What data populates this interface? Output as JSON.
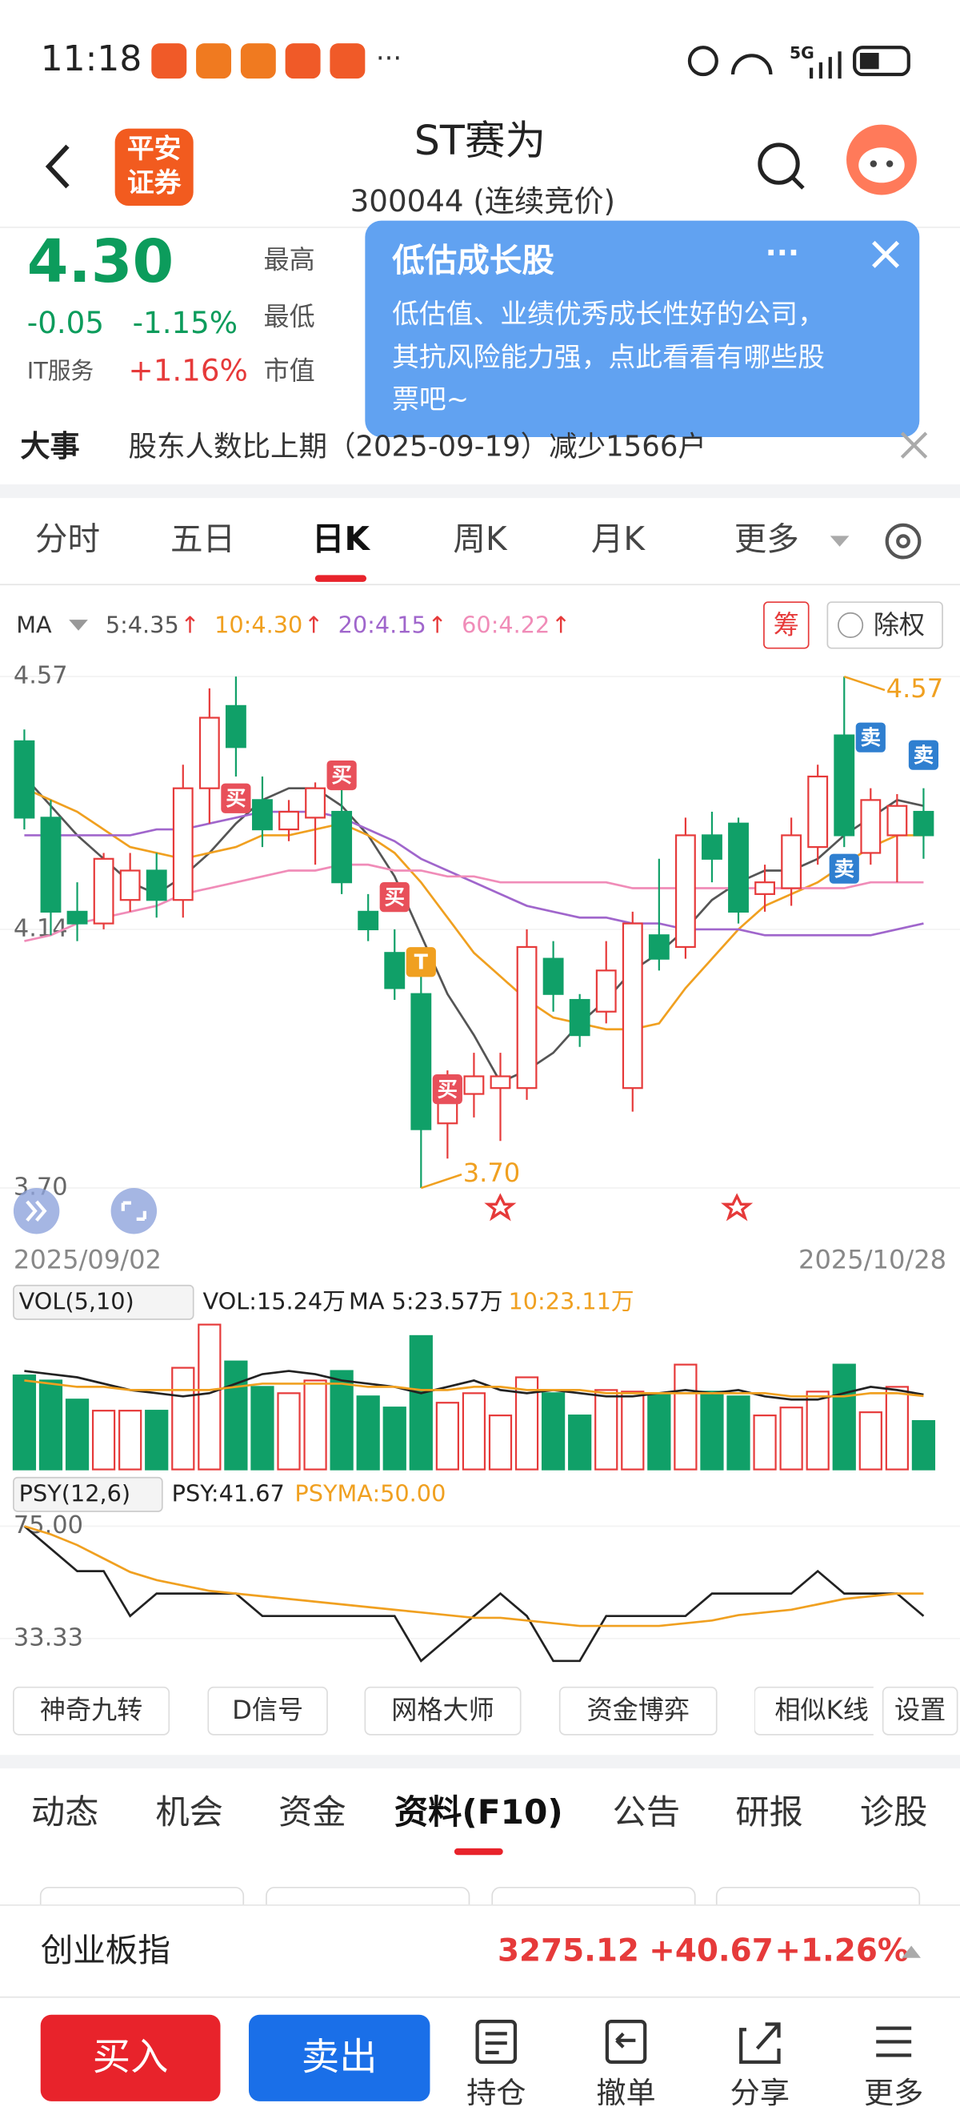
{
  "status_bar": {
    "time": "11:18",
    "network": "5G"
  },
  "header": {
    "logo": [
      "平安",
      "证券"
    ],
    "title": "ST赛为",
    "subtitle": "300044 (连续竞价)"
  },
  "quote": {
    "price": "4.30",
    "change": "-0.05",
    "change_pct": "-1.15%",
    "sector": "IT服务",
    "sector_pct": "+1.16%",
    "labels": [
      "最高",
      "最低",
      "市值"
    ]
  },
  "popup": {
    "title": "低估成长股",
    "lines": [
      "低估值、业绩优秀成长性好的公司，",
      "其抗风险能力强，点此看看有哪些股",
      "票吧~"
    ]
  },
  "news": {
    "label": "大事",
    "text": "股东人数比上期（2025-09-19）减少1566户"
  },
  "tabs": {
    "items": [
      "分时",
      "五日",
      "日K",
      "周K",
      "月K",
      "更多"
    ],
    "active": 2
  },
  "ma_legend": {
    "label": "MA",
    "arrow": "↑",
    "items": [
      {
        "text": "5:4.35",
        "color": "#555555"
      },
      {
        "text": "10:4.30",
        "color": "#f0a020"
      },
      {
        "text": "20:4.15",
        "color": "#a066cc"
      },
      {
        "text": "60:4.22",
        "color": "#f08cb8"
      }
    ]
  },
  "chart_buttons": [
    "筹",
    "除权"
  ],
  "dates": {
    "start": "2025/09/02",
    "end": "2025/10/28"
  },
  "chart_data": [
    {
      "type": "candlestick",
      "ylim": [
        3.7,
        4.57
      ],
      "yticks": [
        4.57,
        4.14,
        {
          "value": 3.7,
          "label": "3.70"
        }
      ],
      "up_color": "#e63a3a",
      "down_color": "#10a068",
      "open": [
        4.46,
        4.33,
        4.17,
        4.15,
        4.19,
        4.24,
        4.19,
        4.38,
        4.52,
        4.36,
        4.31,
        4.33,
        4.34,
        4.17,
        4.1,
        4.03,
        3.81,
        3.86,
        3.87,
        3.87,
        4.09,
        4.02,
        4.0,
        3.87,
        4.13,
        4.11,
        4.3,
        4.32,
        4.2,
        4.21,
        4.28,
        4.47,
        4.27,
        4.3,
        4.34
      ],
      "high": [
        4.48,
        4.36,
        4.22,
        4.27,
        4.27,
        4.27,
        4.42,
        4.55,
        4.57,
        4.4,
        4.36,
        4.39,
        4.38,
        4.2,
        4.14,
        4.06,
        3.9,
        3.93,
        3.93,
        4.14,
        4.12,
        4.03,
        4.12,
        4.17,
        4.26,
        4.33,
        4.34,
        4.33,
        4.25,
        4.33,
        4.42,
        4.57,
        4.38,
        4.37,
        4.38
      ],
      "low": [
        4.31,
        4.13,
        4.12,
        4.14,
        4.17,
        4.16,
        4.16,
        4.32,
        4.4,
        4.28,
        4.29,
        4.25,
        4.2,
        4.12,
        4.02,
        3.7,
        3.75,
        3.82,
        3.78,
        3.85,
        4.0,
        3.94,
        3.98,
        3.83,
        4.07,
        4.09,
        4.22,
        4.15,
        4.17,
        4.18,
        4.25,
        4.28,
        4.25,
        4.22,
        4.26
      ],
      "close": [
        4.33,
        4.17,
        4.15,
        4.26,
        4.24,
        4.19,
        4.38,
        4.5,
        4.45,
        4.31,
        4.34,
        4.38,
        4.22,
        4.14,
        4.04,
        3.8,
        3.87,
        3.89,
        3.89,
        4.11,
        4.03,
        3.96,
        4.07,
        4.15,
        4.09,
        4.3,
        4.26,
        4.17,
        4.22,
        4.3,
        4.4,
        4.3,
        4.36,
        4.35,
        4.3
      ],
      "series": [
        {
          "name": "5",
          "color": "#555555",
          "values": [
            4.4,
            4.35,
            4.3,
            4.26,
            4.22,
            4.2,
            4.23,
            4.27,
            4.32,
            4.36,
            4.38,
            4.38,
            4.35,
            4.3,
            4.23,
            4.13,
            4.03,
            3.96,
            3.88,
            3.9,
            3.93,
            3.98,
            4.02,
            4.07,
            4.1,
            4.14,
            4.19,
            4.22,
            4.24,
            4.24,
            4.26,
            4.3,
            4.33,
            4.36,
            4.35
          ]
        },
        {
          "name": "10",
          "color": "#f0a020",
          "values": [
            4.38,
            4.36,
            4.34,
            4.31,
            4.28,
            4.27,
            4.26,
            4.27,
            4.28,
            4.3,
            4.3,
            4.31,
            4.32,
            4.3,
            4.27,
            4.22,
            4.16,
            4.1,
            4.06,
            4.02,
            3.99,
            3.98,
            3.97,
            3.97,
            3.98,
            4.04,
            4.09,
            4.14,
            4.18,
            4.2,
            4.22,
            4.25,
            4.28,
            4.3,
            4.3
          ]
        },
        {
          "name": "20",
          "color": "#a066cc",
          "values": [
            4.3,
            4.3,
            4.3,
            4.3,
            4.3,
            4.31,
            4.31,
            4.32,
            4.33,
            4.34,
            4.34,
            4.34,
            4.33,
            4.31,
            4.29,
            4.26,
            4.24,
            4.22,
            4.2,
            4.18,
            4.17,
            4.16,
            4.16,
            4.15,
            4.15,
            4.14,
            4.14,
            4.14,
            4.13,
            4.13,
            4.13,
            4.13,
            4.13,
            4.14,
            4.15
          ]
        },
        {
          "name": "60",
          "color": "#f08cb8",
          "values": [
            4.12,
            4.13,
            4.15,
            4.16,
            4.17,
            4.18,
            4.2,
            4.21,
            4.22,
            4.23,
            4.24,
            4.24,
            4.25,
            4.25,
            4.24,
            4.24,
            4.23,
            4.23,
            4.22,
            4.22,
            4.22,
            4.22,
            4.22,
            4.21,
            4.21,
            4.21,
            4.21,
            4.21,
            4.21,
            4.21,
            4.21,
            4.21,
            4.22,
            4.22,
            4.22
          ]
        }
      ],
      "annotations": [
        {
          "label": "买",
          "index": 8
        },
        {
          "label": "买",
          "index": 12
        },
        {
          "label": "买",
          "index": 14
        },
        {
          "label": "买",
          "index": 16
        },
        {
          "label": "卖",
          "index": 32
        },
        {
          "label": "卖",
          "index": 34
        },
        {
          "label": "卖",
          "index": 31
        },
        {
          "label": "T",
          "index": 15
        },
        {
          "label": "4.57",
          "index": 31
        },
        {
          "label": "3.70",
          "index": 15
        }
      ]
    },
    {
      "type": "bar",
      "legend": [
        "VOL(5,10)",
        "VOL:15.24万",
        "MA 5:23.57万",
        "10:23.11万"
      ],
      "ylim": [
        0,
        46
      ],
      "values": [
        29.6,
        28,
        22,
        18.5,
        18.5,
        18.5,
        32,
        45.6,
        34,
        26,
        24,
        28,
        31,
        23,
        19.5,
        42,
        21,
        24,
        17,
        29,
        24,
        17,
        25,
        24.5,
        24,
        33,
        24.5,
        23,
        17,
        19.5,
        24.5,
        33,
        18,
        26,
        15.24
      ],
      "series": [
        {
          "name": "MA 5",
          "color": "#222222",
          "values": [
            31,
            30,
            29,
            27,
            25,
            24,
            23,
            24,
            27,
            30,
            31,
            30,
            28,
            27,
            26,
            24,
            26,
            28,
            25,
            24,
            25,
            24,
            23,
            23,
            24,
            25,
            24,
            25,
            23,
            22,
            22,
            24,
            26,
            25,
            23.57
          ]
        },
        {
          "name": "10",
          "color": "#f0a020",
          "values": [
            28,
            27,
            26,
            26,
            25,
            25,
            25,
            25,
            26,
            27,
            27,
            27,
            27,
            26,
            26,
            25,
            25,
            26,
            26,
            25,
            25,
            25,
            24,
            24,
            24,
            24,
            24,
            24,
            24,
            23,
            23,
            23,
            24,
            24,
            23.11
          ]
        }
      ]
    },
    {
      "type": "line",
      "legend": [
        "PSY(12,6)",
        "PSY:41.67",
        "PSYMA:50.00"
      ],
      "ylim": [
        20,
        80
      ],
      "yticks": [
        {
          "value": 75,
          "label": "75.00"
        },
        33.33
      ],
      "series": [
        {
          "name": "PSY",
          "color": "#222222",
          "values": [
            75,
            66.67,
            58.33,
            58.33,
            41.67,
            50,
            50,
            50,
            50,
            41.67,
            41.67,
            41.67,
            41.67,
            41.67,
            41.67,
            25,
            33.33,
            41.67,
            50,
            41.67,
            25,
            25,
            41.67,
            41.67,
            41.67,
            41.67,
            50,
            50,
            50,
            50,
            58.33,
            50,
            50,
            50,
            41.67
          ]
        },
        {
          "name": "PSYMA",
          "color": "#f0a020",
          "values": [
            75,
            72,
            68,
            63,
            58,
            55,
            53,
            51,
            50,
            49,
            48,
            47,
            46,
            45,
            44,
            43,
            42,
            41,
            41,
            40,
            39,
            38,
            38,
            38,
            38,
            39,
            40,
            42,
            43,
            44,
            46,
            48,
            49,
            50,
            50
          ]
        }
      ]
    }
  ],
  "tools": [
    "神奇九转",
    "D信号",
    "网格大师",
    "资金博弈",
    "相似K线",
    "设置"
  ],
  "sections": {
    "items": [
      "动态",
      "机会",
      "资金",
      "资料(F10)",
      "公告",
      "研报",
      "诊股"
    ],
    "active": 3
  },
  "index_bar": {
    "name": "创业板指",
    "value": "3275.12",
    "change": "+40.67",
    "change_pct": "+1.26%"
  },
  "bottom": {
    "buy": "买入",
    "sell": "卖出",
    "icons": [
      "持仓",
      "撤单",
      "分享",
      "更多"
    ]
  }
}
